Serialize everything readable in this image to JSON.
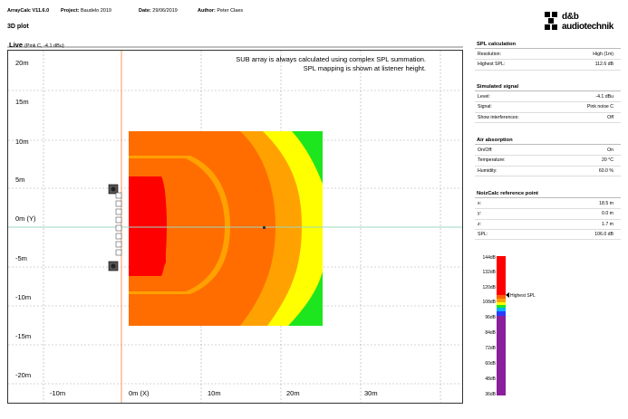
{
  "header": {
    "app": "ArrayCalc V11.6.0",
    "project_label": "Project:",
    "project": "Baudelo 2019",
    "date_label": "Date:",
    "date": "29/06/2019",
    "author_label": "Author:",
    "author": "Peter Claes",
    "page_title": "3D plot"
  },
  "logo": {
    "line1": "d&b",
    "line2": "audiotechnik",
    "icon": "db-logo-icon"
  },
  "plot": {
    "live_label": "Live",
    "live_sub": "(Pink C, -4.1 dBu)",
    "note_line1": "SUB array is always calculated using complex SPL summation.",
    "note_line2": "SPL mapping is shown at listener height.",
    "y_ticks": [
      "20m",
      "15m",
      "10m",
      "5m",
      "0m (Y)",
      "-5m",
      "-10m",
      "-15m",
      "-20m"
    ],
    "x_ticks": [
      "-10m",
      "0m (X)",
      "10m",
      "20m",
      "30m"
    ],
    "colors": {
      "red": "#ff0000",
      "orange": "#ff6d00",
      "lightorange": "#ffa100",
      "yellow": "#ffff00",
      "green": "#1ee61e"
    }
  },
  "panels": {
    "spl_calc": {
      "title": "SPL calculation",
      "rows": [
        {
          "label": "Resolution:",
          "value": "High (1m)"
        },
        {
          "label": "Highest SPL:",
          "value": "112.6 dB"
        }
      ]
    },
    "signal": {
      "title": "Simulated signal",
      "rows": [
        {
          "label": "Level:",
          "value": "-4.1 dBu"
        },
        {
          "label": "Signal:",
          "value": "Pink noise C"
        },
        {
          "label": "Show interferences:",
          "value": "Off"
        }
      ]
    },
    "air": {
      "title": "Air absorption",
      "rows": [
        {
          "label": "On/Off:",
          "value": "On"
        },
        {
          "label": "Temperature:",
          "value": "20 °C"
        },
        {
          "label": "Humidity:",
          "value": "60.0 %"
        }
      ]
    },
    "noizcalc": {
      "title": "NoizCalc reference point",
      "rows": [
        {
          "label": "x:",
          "value": "18.5 m"
        },
        {
          "label": "y:",
          "value": "0.0 m"
        },
        {
          "label": "z:",
          "value": "1.7 m"
        },
        {
          "label": "SPL:",
          "value": "106.0 dB"
        }
      ]
    }
  },
  "legend": {
    "ticks": [
      "144dB",
      "132dB",
      "120dB",
      "108dB",
      "96dB",
      "84dB",
      "72dB",
      "60dB",
      "48dB",
      "36dB"
    ],
    "marker_label": "Highest SPL",
    "marker_value_db": 112.6
  }
}
